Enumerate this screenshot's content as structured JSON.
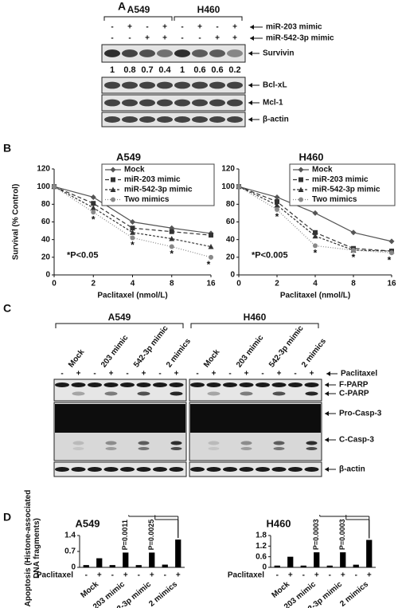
{
  "panel_labels": [
    "A",
    "B",
    "C",
    "D"
  ],
  "panel_a": {
    "cell_lines": [
      "A549",
      "H460"
    ],
    "treatments": [
      {
        "name": "miR-203 mimic",
        "signs": [
          "-",
          "+",
          "-",
          "+",
          "-",
          "+",
          "-",
          "+"
        ]
      },
      {
        "name": "miR-542-3p mimic",
        "signs": [
          "-",
          "-",
          "+",
          "+",
          "-",
          "-",
          "+",
          "+"
        ]
      }
    ],
    "bands": [
      "Survivin",
      "Bcl-xL",
      "Mcl-1",
      "β-actin"
    ],
    "survivin_levels": [
      1,
      0.8,
      0.7,
      0.4,
      1,
      0.6,
      0.6,
      0.2
    ]
  },
  "panel_c": {
    "cell_lines": [
      "A549",
      "H460"
    ],
    "groups": [
      "Mock",
      "203 mimic",
      "542-3p mimic",
      "2 mimics"
    ],
    "paclitaxel_label": "Paclitaxel",
    "paclitaxel_signs": [
      "-",
      "+"
    ],
    "bands": [
      "F-PARP",
      "C-PARP",
      "Pro-Casp-3",
      "C-Casp-3",
      "β-actin"
    ]
  },
  "chart_data": [
    {
      "type": "line",
      "title": "A549",
      "y_label": "Survival (% Control)",
      "x_label": "Paclitaxel (nmol/L)",
      "categories": [
        "0",
        "2",
        "4",
        "8",
        "16"
      ],
      "ylim": [
        0,
        120
      ],
      "yticks": [
        0,
        20,
        40,
        60,
        80,
        100,
        120
      ],
      "annotation": "*P<0.05",
      "significance_marker": "*",
      "series": [
        {
          "name": "Mock",
          "color": "#555555",
          "dash": "none",
          "marker": "diamond",
          "values": [
            100,
            88,
            60,
            53,
            47
          ]
        },
        {
          "name": "miR-203 mimic",
          "color": "#333333",
          "dash": "5 3",
          "marker": "square",
          "values": [
            100,
            81,
            53,
            49,
            45
          ]
        },
        {
          "name": "miR-542-3p mimic",
          "color": "#333333",
          "dash": "3 2",
          "marker": "triangle",
          "values": [
            100,
            76,
            48,
            41,
            32
          ]
        },
        {
          "name": "Two mimics",
          "color": "#888888",
          "dash": "1 2",
          "marker": "circle",
          "values": [
            100,
            71,
            42,
            32,
            20
          ]
        }
      ]
    },
    {
      "type": "line",
      "title": "H460",
      "x_label": "Paclitaxel (nmol/L)",
      "categories": [
        "0",
        "2",
        "4",
        "8",
        "16"
      ],
      "ylim": [
        0,
        120
      ],
      "yticks": [
        0,
        20,
        40,
        60,
        80,
        100,
        120
      ],
      "annotation": "*P<0.005",
      "significance_marker": "*",
      "series": [
        {
          "name": "Mock",
          "color": "#555555",
          "dash": "none",
          "marker": "diamond",
          "values": [
            100,
            88,
            70,
            48,
            38
          ]
        },
        {
          "name": "miR-203 mimic",
          "color": "#333333",
          "dash": "5 3",
          "marker": "square",
          "values": [
            100,
            83,
            48,
            30,
            27
          ]
        },
        {
          "name": "miR-542-3p mimic",
          "color": "#333333",
          "dash": "3 2",
          "marker": "triangle",
          "values": [
            100,
            79,
            44,
            28,
            27
          ]
        },
        {
          "name": "Two mimics",
          "color": "#888888",
          "dash": "1 2",
          "marker": "circle",
          "values": [
            100,
            74,
            33,
            28,
            25
          ]
        }
      ]
    },
    {
      "type": "bar",
      "title": "A549",
      "y_label": "Apoptosis (Histone-associated DNA fragments)",
      "x_label": "Paclitaxel",
      "categories": [
        "-",
        "+",
        "-",
        "+",
        "-",
        "+",
        "-",
        "+"
      ],
      "groups": [
        "Mock",
        "203 mimic",
        "542-3p mimic",
        "2 mimics"
      ],
      "values": [
        0.1,
        0.4,
        0.1,
        0.65,
        0.1,
        0.65,
        0.12,
        1.22
      ],
      "color": "#000000",
      "ylim": [
        0,
        1.4
      ],
      "yticks": [
        0,
        0.7,
        1.4
      ],
      "comparisons": [
        {
          "label": "P=0.0011"
        },
        {
          "label": "P=0.0025"
        }
      ]
    },
    {
      "type": "bar",
      "title": "H460",
      "x_label": "Paclitaxel",
      "categories": [
        "-",
        "+",
        "-",
        "+",
        "-",
        "+",
        "-",
        "+"
      ],
      "groups": [
        "Mock",
        "203 mimic",
        "542-3p mimic",
        "2 mimics"
      ],
      "values": [
        0.1,
        0.6,
        0.1,
        0.85,
        0.1,
        0.85,
        0.15,
        1.55
      ],
      "color": "#000000",
      "ylim": [
        0,
        1.8
      ],
      "yticks": [
        0,
        0.6,
        1.2,
        1.8
      ],
      "comparisons": [
        {
          "label": "P=0.0003"
        },
        {
          "label": "P=0.0003"
        }
      ]
    }
  ]
}
